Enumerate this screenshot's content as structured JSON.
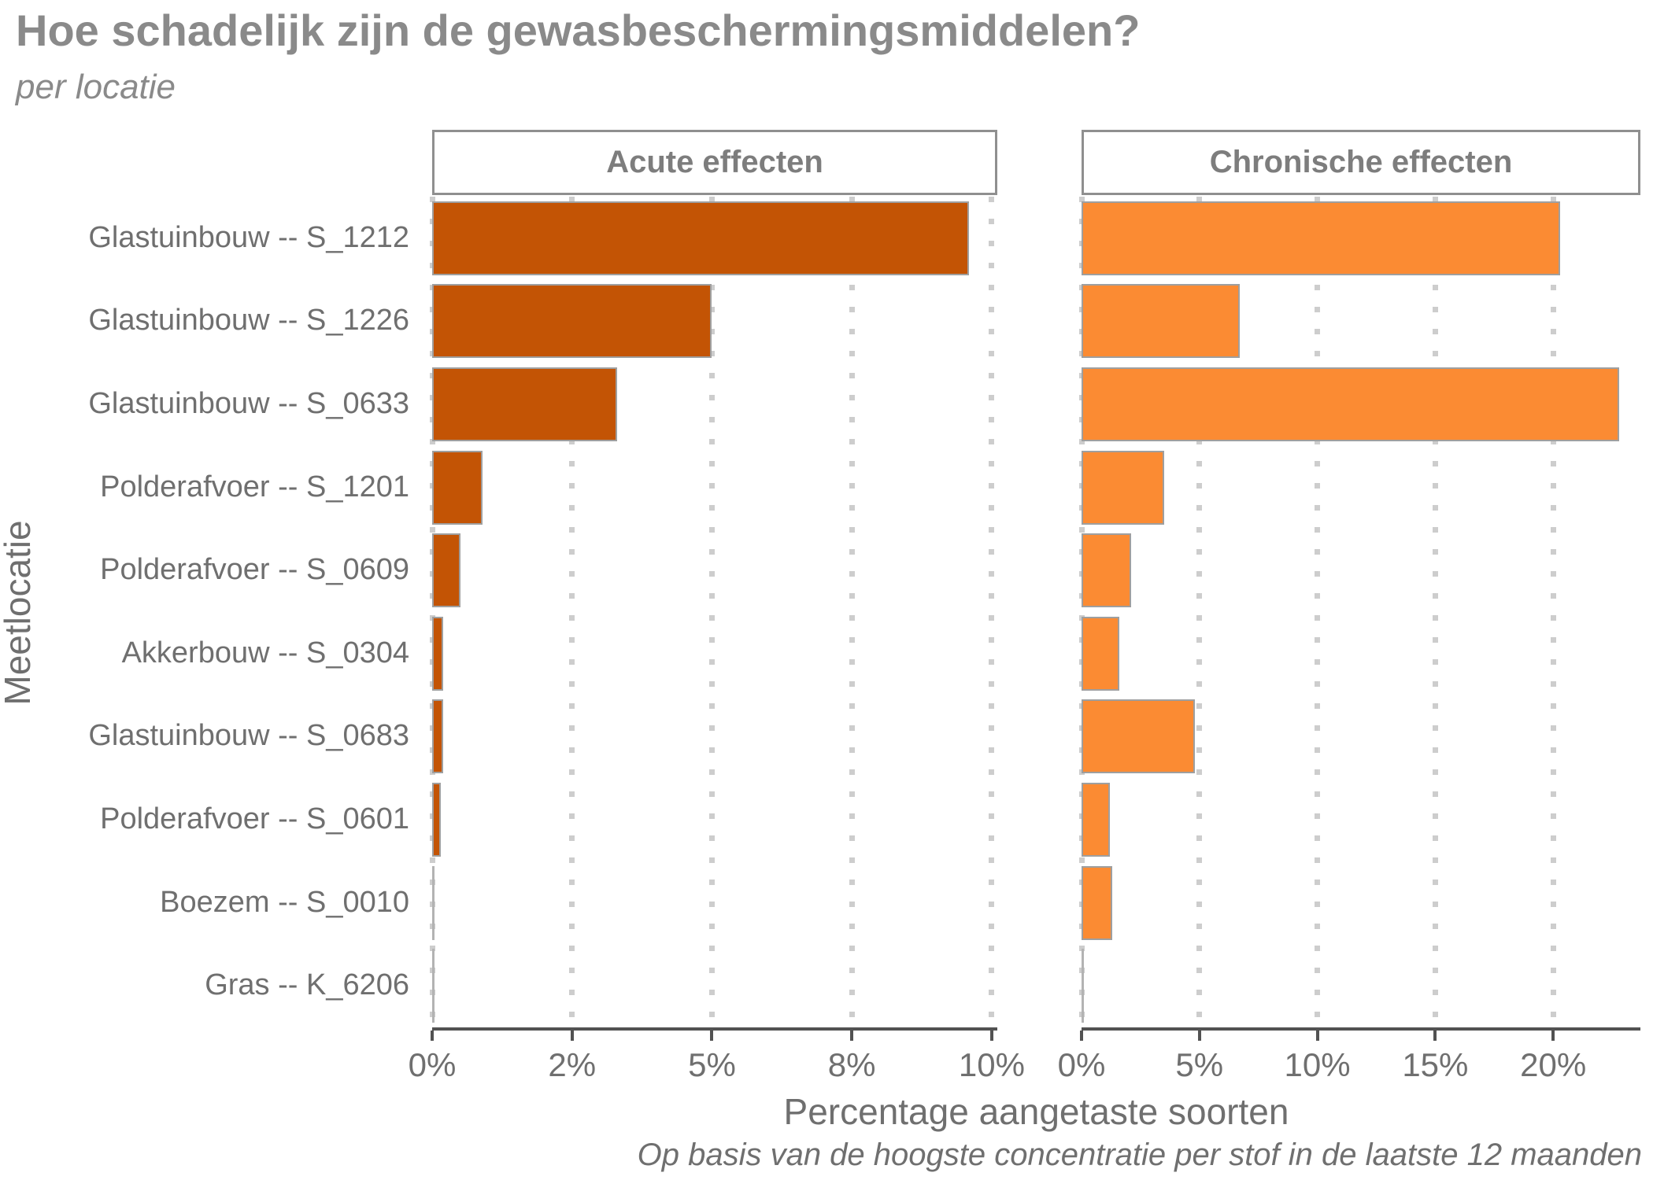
{
  "title": "Hoe schadelijk zijn de gewasbeschermingsmiddelen?",
  "subtitle": "per locatie",
  "colors": {
    "title_text": "#8a8a8a",
    "axis_text": "#6f6f6f",
    "axis_line": "#525252",
    "grid_dots": "#cdcdcd",
    "panel_border": "#8f8f8f",
    "bar_border": "#9f9f9f",
    "acute_bar": "#c35405",
    "chronic_bar": "#fb8b33"
  },
  "chart_data": {
    "type": "bar",
    "orientation": "horizontal",
    "title": "Hoe schadelijk zijn de gewasbeschermingsmiddelen?",
    "subtitle": "per locatie",
    "xlabel": "Percentage aangetaste soorten",
    "ylabel": "Meetlocatie",
    "caption": "Op basis van de hoogste concentratie per stof in de laatste 12 maanden",
    "legend": "none",
    "grid": "dotted-vertical",
    "categories": [
      "Glastuinbouw -- S_1212",
      "Glastuinbouw -- S_1226",
      "Glastuinbouw -- S_0633",
      "Polderafvoer -- S_1201",
      "Polderafvoer -- S_0609",
      "Akkerbouw -- S_0304",
      "Glastuinbouw -- S_0683",
      "Polderafvoer -- S_0601",
      "Boezem -- S_0010",
      "Gras -- K_6206"
    ],
    "panels": [
      {
        "name": "Acute effecten",
        "values": [
          9.6,
          5.0,
          3.3,
          0.9,
          0.5,
          0.2,
          0.2,
          0.15,
          0,
          0
        ],
        "unit": "%",
        "xlim": [
          0,
          10.1
        ],
        "ticks": [
          0,
          2.5,
          5,
          7.5,
          10
        ],
        "tick_labels": [
          "0%",
          "2%",
          "5%",
          "8%",
          "10%"
        ],
        "bar_color": "#c35405"
      },
      {
        "name": "Chronische effecten",
        "values": [
          20.3,
          6.7,
          22.8,
          3.5,
          2.1,
          1.6,
          4.8,
          1.2,
          1.3,
          0
        ],
        "unit": "%",
        "xlim": [
          0,
          23.7
        ],
        "ticks": [
          0,
          5,
          10,
          15,
          20
        ],
        "tick_labels": [
          "0%",
          "5%",
          "10%",
          "15%",
          "20%"
        ],
        "bar_color": "#fb8b33"
      }
    ]
  },
  "layout_note": "two aligned horizontal bar panels sharing one category axis"
}
